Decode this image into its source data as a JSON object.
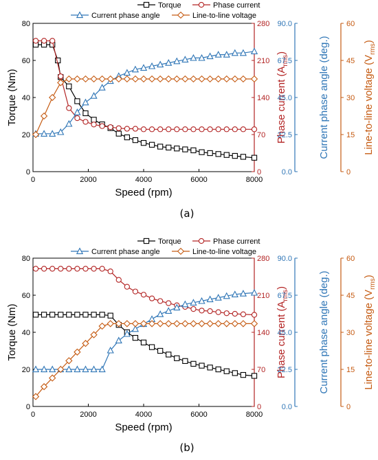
{
  "chart_data": [
    {
      "type": "line",
      "panel_label": "(a)",
      "xlabel": "Speed (rpm)",
      "xlim": [
        0,
        8000
      ],
      "xticks": [
        0,
        2000,
        4000,
        6000,
        8000
      ],
      "axes": {
        "torque": {
          "label": "Torque (Nm)",
          "lim": [
            0,
            80
          ],
          "ticks": [
            0,
            20,
            40,
            60,
            80
          ],
          "tick_labels": [
            "0",
            "20",
            "40",
            "60",
            "80"
          ],
          "color": "#000000"
        },
        "phase_current": {
          "label_main": "Phase current (A",
          "label_sub": "rms",
          "label_end": ")",
          "lim": [
            0,
            280
          ],
          "ticks": [
            0,
            70,
            140,
            210,
            280
          ],
          "tick_labels": [
            "0",
            "70",
            "140",
            "210",
            "280"
          ],
          "color": "#b22222"
        },
        "phase_angle": {
          "label": "Current phase angle (deg.)",
          "lim": [
            0,
            90
          ],
          "ticks": [
            0,
            22.5,
            45,
            67.5,
            90
          ],
          "tick_labels": [
            "0.0",
            "22.5",
            "45.0",
            "67.5",
            "90.0"
          ],
          "color": "#2e75b6"
        },
        "voltage": {
          "label_main": "Line-to-line voltage (V",
          "label_sub": "rms",
          "label_end": ")",
          "lim": [
            0,
            60
          ],
          "ticks": [
            0,
            15,
            30,
            45,
            60
          ],
          "tick_labels": [
            "0",
            "15",
            "30",
            "45",
            "60"
          ],
          "color": "#c55a11"
        }
      },
      "legend": [
        "Torque",
        "Phase current",
        "Current phase angle",
        "Line-to-line voltage"
      ],
      "series": [
        {
          "name": "Torque",
          "axis": "torque",
          "marker": "square",
          "color": "#000000",
          "x": [
            100,
            400,
            700,
            900,
            1000,
            1300,
            1600,
            1900,
            2200,
            2500,
            2800,
            3100,
            3400,
            3700,
            4000,
            4300,
            4600,
            4900,
            5200,
            5500,
            5800,
            6100,
            6400,
            6700,
            7000,
            7300,
            7600,
            8000
          ],
          "y": [
            68.5,
            68.5,
            68.5,
            60,
            51,
            46,
            38,
            31.5,
            28,
            25.5,
            23.5,
            20.5,
            18.5,
            17,
            15.5,
            14.5,
            13.5,
            13,
            12.5,
            12,
            11.5,
            10.5,
            10,
            9.5,
            9,
            8.5,
            8,
            7.5
          ]
        },
        {
          "name": "Phase current",
          "axis": "phase_current",
          "marker": "circle",
          "color": "#b22222",
          "x": [
            100,
            400,
            700,
            1000,
            1300,
            1600,
            1900,
            2200,
            2500,
            2800,
            3100,
            3400,
            3700,
            4000,
            4300,
            4600,
            4900,
            5200,
            5500,
            5800,
            6100,
            6400,
            6700,
            7000,
            7300,
            7600,
            8000
          ],
          "y": [
            247,
            247,
            247,
            180,
            120,
            101,
            94,
            89,
            86,
            84,
            82,
            81,
            81,
            80,
            80,
            80,
            80,
            80,
            80,
            80,
            80,
            80,
            80,
            80,
            80,
            80,
            80
          ]
        },
        {
          "name": "Current phase angle",
          "axis": "phase_angle",
          "marker": "triangle",
          "color": "#2e75b6",
          "x": [
            100,
            400,
            700,
            1000,
            1300,
            1600,
            1900,
            2200,
            2500,
            2800,
            3100,
            3400,
            3700,
            4000,
            4300,
            4600,
            4900,
            5200,
            5500,
            5800,
            6100,
            6400,
            6700,
            7000,
            7300,
            7600,
            8000
          ],
          "y": [
            23,
            23,
            23,
            24,
            29,
            36,
            42,
            46,
            51,
            55,
            58,
            60,
            62,
            63,
            64,
            65,
            66,
            67,
            68,
            69,
            69,
            70,
            71,
            71,
            72,
            72,
            73
          ]
        },
        {
          "name": "Line-to-line voltage",
          "axis": "voltage",
          "marker": "diamond",
          "color": "#c55a11",
          "x": [
            100,
            400,
            700,
            1000,
            1300,
            1600,
            1900,
            2200,
            2500,
            2800,
            3100,
            3400,
            3700,
            4000,
            4300,
            4600,
            4900,
            5200,
            5500,
            5800,
            6100,
            6400,
            6700,
            7000,
            7300,
            7600,
            8000
          ],
          "y": [
            15,
            22.5,
            30,
            36,
            37.5,
            37.5,
            37.5,
            37.5,
            37.5,
            37.5,
            37.5,
            37.5,
            37.5,
            37.5,
            37.5,
            37.5,
            37.5,
            37.5,
            37.5,
            37.5,
            37.5,
            37.5,
            37.5,
            37.5,
            37.5,
            37.5,
            37.5
          ]
        }
      ]
    },
    {
      "type": "line",
      "panel_label": "(b)",
      "xlabel": "Speed (rpm)",
      "xlim": [
        0,
        8000
      ],
      "xticks": [
        0,
        2000,
        4000,
        6000,
        8000
      ],
      "axes": {
        "torque": {
          "label": "Torque (Nm)",
          "lim": [
            0,
            80
          ],
          "ticks": [
            0,
            20,
            40,
            60,
            80
          ],
          "tick_labels": [
            "0",
            "20",
            "40",
            "60",
            "80"
          ],
          "color": "#000000"
        },
        "phase_current": {
          "label_main": "Phase current (A",
          "label_sub": "rms",
          "label_end": ")",
          "lim": [
            0,
            280
          ],
          "ticks": [
            0,
            70,
            140,
            210,
            280
          ],
          "tick_labels": [
            "0",
            "70",
            "140",
            "210",
            "280"
          ],
          "color": "#b22222"
        },
        "phase_angle": {
          "label": "Current phase angle (deg.)",
          "lim": [
            0,
            90
          ],
          "ticks": [
            0,
            22.5,
            45,
            67.5,
            90
          ],
          "tick_labels": [
            "0.0",
            "22.5",
            "45.0",
            "67.5",
            "90.0"
          ],
          "color": "#2e75b6"
        },
        "voltage": {
          "label_main": "Line-to-line voltage (V",
          "label_sub": "rms",
          "label_end": ")",
          "lim": [
            0,
            60
          ],
          "ticks": [
            0,
            15,
            30,
            45,
            60
          ],
          "tick_labels": [
            "0",
            "15",
            "30",
            "45",
            "60"
          ],
          "color": "#c55a11"
        }
      },
      "legend": [
        "Torque",
        "Phase current",
        "Current phase angle",
        "Line-to-line voltage"
      ],
      "series": [
        {
          "name": "Torque",
          "axis": "torque",
          "marker": "square",
          "color": "#000000",
          "x": [
            100,
            400,
            700,
            1000,
            1300,
            1600,
            1900,
            2200,
            2500,
            2800,
            3100,
            3400,
            3700,
            4000,
            4300,
            4600,
            4900,
            5200,
            5500,
            5800,
            6100,
            6400,
            6700,
            7000,
            7300,
            7600,
            8000
          ],
          "y": [
            49.5,
            49.5,
            49.5,
            49.5,
            49.5,
            49.5,
            49.5,
            49.5,
            49.5,
            49,
            44,
            40,
            37,
            34.5,
            32,
            30,
            28,
            26,
            24.5,
            23,
            22,
            21,
            20,
            19,
            18,
            17,
            16.5
          ]
        },
        {
          "name": "Phase current",
          "axis": "phase_current",
          "marker": "circle",
          "color": "#b22222",
          "x": [
            100,
            400,
            700,
            1000,
            1300,
            1600,
            1900,
            2200,
            2500,
            2800,
            3100,
            3400,
            3700,
            4000,
            4300,
            4600,
            4900,
            5200,
            5500,
            5800,
            6100,
            6400,
            6700,
            7000,
            7300,
            7600,
            8000
          ],
          "y": [
            260,
            260,
            260,
            260,
            260,
            260,
            260,
            260,
            260,
            255,
            239,
            226,
            217,
            211,
            204,
            199,
            195,
            191,
            188,
            184,
            181,
            180,
            178,
            176,
            175,
            174,
            173
          ]
        },
        {
          "name": "Current phase angle",
          "axis": "phase_angle",
          "marker": "triangle",
          "color": "#2e75b6",
          "x": [
            100,
            400,
            700,
            1000,
            1300,
            1600,
            1900,
            2200,
            2500,
            2800,
            3100,
            3400,
            3700,
            4000,
            4300,
            4600,
            4900,
            5200,
            5500,
            5800,
            6100,
            6400,
            6700,
            7000,
            7300,
            7600,
            8000
          ],
          "y": [
            22.5,
            22.5,
            22.5,
            22.5,
            22.5,
            22.5,
            22.5,
            22.5,
            22.5,
            34,
            40,
            44,
            47,
            50,
            53,
            56,
            58,
            60,
            62,
            63,
            64,
            65,
            66,
            67,
            68,
            68.5,
            69
          ]
        },
        {
          "name": "Line-to-line voltage",
          "axis": "voltage",
          "marker": "diamond",
          "color": "#c55a11",
          "x": [
            100,
            400,
            700,
            1000,
            1300,
            1600,
            1900,
            2200,
            2500,
            2800,
            3100,
            3400,
            3700,
            4000,
            4300,
            4600,
            4900,
            5200,
            5500,
            5800,
            6100,
            6400,
            6700,
            7000,
            7300,
            7600,
            8000
          ],
          "y": [
            4,
            8,
            11.5,
            15,
            18.5,
            22,
            25.5,
            29,
            32.5,
            33.5,
            33.5,
            33.5,
            33.5,
            33.5,
            33.5,
            33.5,
            33.5,
            33.5,
            33.5,
            33.5,
            33.5,
            33.5,
            33.5,
            33.5,
            33.5,
            33.5,
            33.5
          ]
        }
      ]
    }
  ]
}
